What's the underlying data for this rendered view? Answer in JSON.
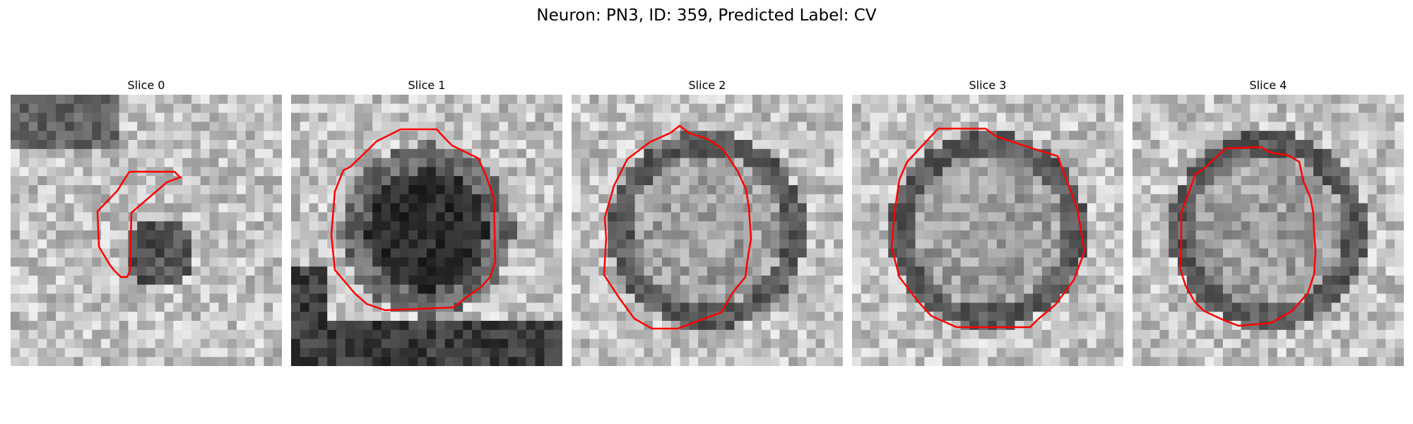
{
  "figure": {
    "title": "Neuron: PN3, ID: 359, Predicted Label: CV",
    "colormap": "gray",
    "contour_color": "#ff0000",
    "panels": [
      {
        "title": "Slice 0",
        "seed": 11,
        "dark_blob": "off-center"
      },
      {
        "title": "Slice 1",
        "seed": 23,
        "dark_blob": "center-dark"
      },
      {
        "title": "Slice 2",
        "seed": 37,
        "dark_blob": "ring"
      },
      {
        "title": "Slice 3",
        "seed": 41,
        "dark_blob": "ring"
      },
      {
        "title": "Slice 4",
        "seed": 59,
        "dark_blob": "ring"
      }
    ]
  }
}
